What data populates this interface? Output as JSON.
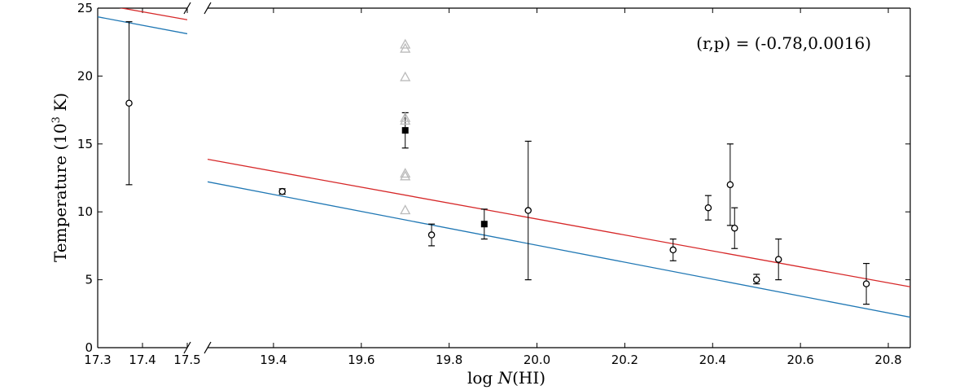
{
  "chart_data": {
    "type": "scatter",
    "xlabel_prefix": "log ",
    "xlabel_italic": "N",
    "xlabel_suffix": "(HI)",
    "ylabel_prefix": "Temperature (10",
    "ylabel_exp": "3",
    "ylabel_suffix": " K)",
    "annotation": "(r,p) = (-0.78,0.0016)",
    "ylim": [
      0,
      25
    ],
    "y_ticks": [
      "0",
      "5",
      "10",
      "15",
      "20",
      "25"
    ],
    "panels": [
      {
        "name": "left",
        "xlim": [
          17.3,
          17.5
        ],
        "x_ticks": [
          "17.3",
          "17.4",
          "17.5"
        ]
      },
      {
        "name": "right",
        "xlim": [
          19.25,
          20.85
        ],
        "x_ticks": [
          "19.4",
          "19.6",
          "19.8",
          "20.0",
          "20.2",
          "20.4",
          "20.6",
          "20.8"
        ]
      }
    ],
    "fit_lines": [
      {
        "name": "red fit",
        "color": "#d62728",
        "slope": -5.87,
        "intercept": 126.87
      },
      {
        "name": "blue fit",
        "color": "#1f77b4",
        "slope": -6.23,
        "intercept": 132.14
      }
    ],
    "series": [
      {
        "name": "open circles",
        "marker": "circle",
        "points": [
          {
            "x": 17.37,
            "y": 18.0,
            "lo": 12.0,
            "hi": 24.0
          },
          {
            "x": 19.42,
            "y": 11.5,
            "lo": 11.3,
            "hi": 11.7
          },
          {
            "x": 19.76,
            "y": 8.3,
            "lo": 7.5,
            "hi": 9.1
          },
          {
            "x": 19.98,
            "y": 10.1,
            "lo": 5.0,
            "hi": 15.2
          },
          {
            "x": 20.31,
            "y": 7.2,
            "lo": 6.4,
            "hi": 8.0
          },
          {
            "x": 20.39,
            "y": 10.3,
            "lo": 9.4,
            "hi": 11.2
          },
          {
            "x": 20.44,
            "y": 12.0,
            "lo": 9.0,
            "hi": 15.0
          },
          {
            "x": 20.45,
            "y": 8.8,
            "lo": 7.3,
            "hi": 10.3
          },
          {
            "x": 20.5,
            "y": 5.0,
            "lo": 4.7,
            "hi": 5.4
          },
          {
            "x": 20.55,
            "y": 6.5,
            "lo": 5.0,
            "hi": 8.0
          },
          {
            "x": 20.75,
            "y": 4.7,
            "lo": 3.2,
            "hi": 6.2
          }
        ]
      },
      {
        "name": "filled squares",
        "marker": "square",
        "points": [
          {
            "x": 19.7,
            "y": 16.0,
            "lo": 14.7,
            "hi": 17.3
          },
          {
            "x": 19.88,
            "y": 9.1,
            "lo": 8.0,
            "hi": 10.2
          }
        ]
      },
      {
        "name": "gray triangles",
        "marker": "triangle",
        "color": "#bbbbbb",
        "points": [
          {
            "x": 19.7,
            "y": 22.3
          },
          {
            "x": 19.7,
            "y": 22.0
          },
          {
            "x": 19.7,
            "y": 19.9
          },
          {
            "x": 19.7,
            "y": 16.9
          },
          {
            "x": 19.7,
            "y": 16.7
          },
          {
            "x": 19.7,
            "y": 12.8
          },
          {
            "x": 19.7,
            "y": 12.6
          },
          {
            "x": 19.7,
            "y": 10.1
          }
        ]
      }
    ]
  }
}
